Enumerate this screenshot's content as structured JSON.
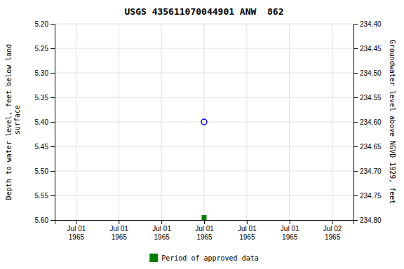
{
  "chart_data": {
    "type": "scatter",
    "title": "USGS 435611070044901 ANW  862",
    "y_label": "Depth to water level, feet below land\n surface",
    "y2_label": "Groundwater level above NGVD 1929, feet",
    "categories": [
      "Jul 01\n1965",
      "Jul 01\n1965",
      "Jul 01\n1965",
      "Jul 01\n1965",
      "Jul 01\n1965",
      "Jul 01\n1965",
      "Jul 02\n1965"
    ],
    "series": [
      {
        "values": [
          null,
          null,
          null,
          5.4,
          null,
          null,
          null
        ],
        "color": "#0000ff",
        "marker": "open-circle"
      },
      {
        "name": "Period of approved data",
        "values": [
          null,
          null,
          null,
          5.595,
          null,
          null,
          null
        ],
        "color": "#008000",
        "marker": "square"
      }
    ],
    "ylim": [
      5.6,
      5.2
    ],
    "yticks": [
      {
        "value": 5.2,
        "label": "5.20"
      },
      5.25,
      {
        "value": 5.3,
        "label": "5.30"
      },
      5.35,
      {
        "value": 5.4,
        "label": "5.40"
      },
      5.45,
      {
        "value": 5.5,
        "label": "5.50"
      },
      5.55,
      {
        "value": 5.6,
        "label": "5.60"
      }
    ],
    "y2lim": [
      234.8,
      234.4
    ],
    "y2ticks": [
      {
        "value": 234.8,
        "label": "234.80"
      },
      234.75,
      {
        "value": 234.7,
        "label": "234.70"
      },
      234.65,
      {
        "value": 234.6,
        "label": "234.60"
      },
      234.55,
      {
        "value": 234.5,
        "label": "234.50"
      },
      234.45,
      {
        "value": 234.4,
        "label": "234.40"
      }
    ],
    "grid": true,
    "legend": "bottom"
  }
}
